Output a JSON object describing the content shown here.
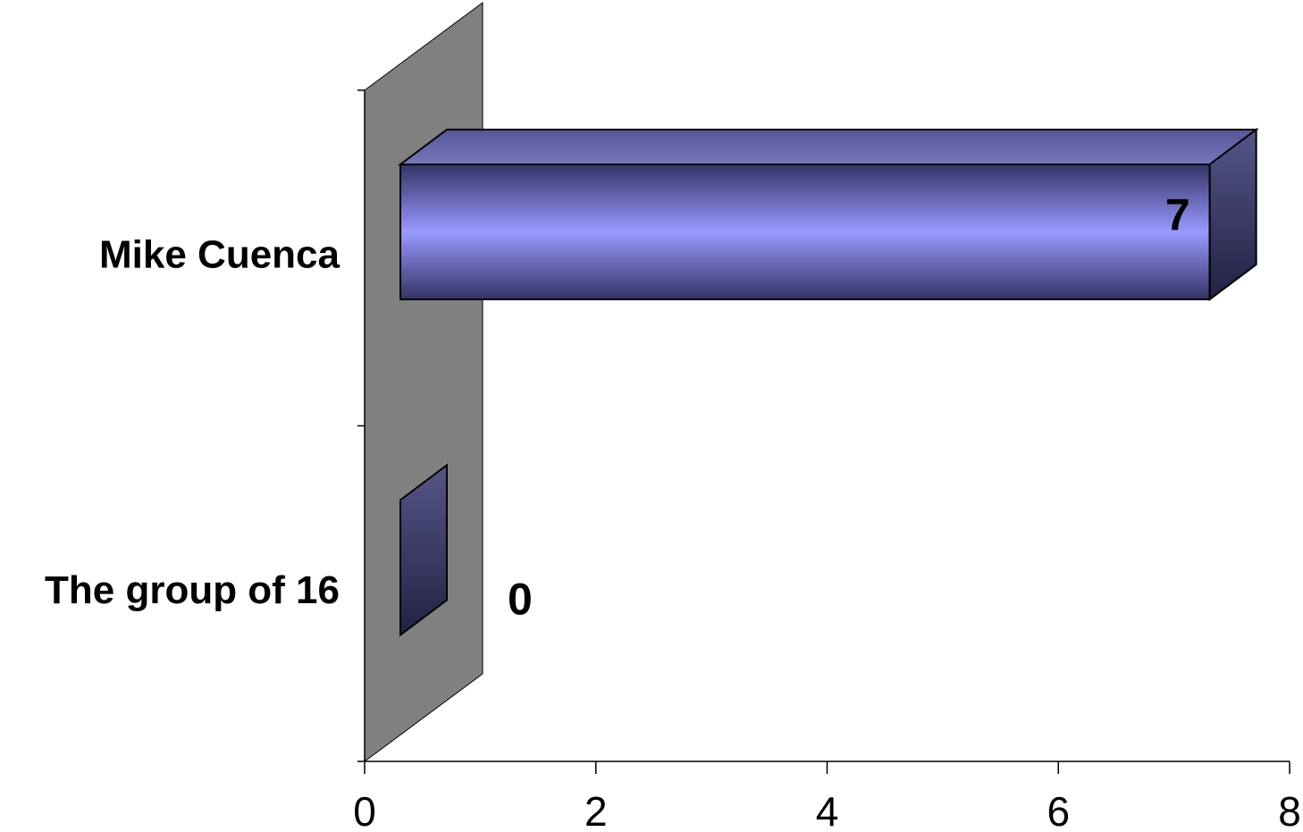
{
  "chart_data": {
    "type": "bar",
    "orientation": "horizontal",
    "three_d": true,
    "categories": [
      "Mike Cuenca",
      "The group of 16"
    ],
    "values": [
      7,
      0
    ],
    "data_labels": [
      "7",
      "0"
    ],
    "xlim": [
      0,
      8
    ],
    "x_ticks": [
      0,
      2,
      4,
      6,
      8
    ],
    "title": "",
    "xlabel": "",
    "ylabel": "",
    "grid": false,
    "legend": false,
    "colors": {
      "bar_front_mid": "#9999ff",
      "bar_front_edge": "#333366",
      "bar_side": "#4a4a7a",
      "bar_top": "#6666aa",
      "wall": "#808080",
      "axis": "#000000"
    }
  }
}
